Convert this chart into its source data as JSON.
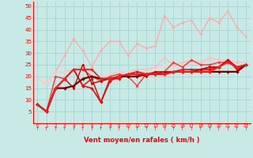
{
  "xlabel": "Vent moyen/en rafales ( km/h )",
  "xlim": [
    -0.5,
    23.5
  ],
  "ylim": [
    0,
    52
  ],
  "yticks": [
    5,
    10,
    15,
    20,
    25,
    30,
    35,
    40,
    45,
    50
  ],
  "xticks": [
    0,
    1,
    2,
    3,
    4,
    5,
    6,
    7,
    8,
    9,
    10,
    11,
    12,
    13,
    14,
    15,
    16,
    17,
    18,
    19,
    20,
    21,
    22,
    23
  ],
  "bg_color": "#c8eae6",
  "grid_color": "#aad4d0",
  "series": [
    {
      "x": [
        0,
        1,
        2,
        3,
        4,
        5,
        6,
        7,
        8,
        9,
        10,
        11,
        12,
        13,
        14,
        15,
        16,
        17,
        18,
        19,
        20,
        21,
        22,
        23
      ],
      "y": [
        19,
        17,
        22,
        29,
        36,
        31,
        24,
        31,
        35,
        35,
        29,
        34,
        32,
        33,
        46,
        41,
        43,
        44,
        38,
        45,
        43,
        48,
        41,
        37
      ],
      "color": "#ffaaaa",
      "lw": 1.0,
      "marker": "o",
      "ms": 2.2
    },
    {
      "x": [
        0,
        1,
        2,
        3,
        4,
        5,
        6,
        7,
        8,
        9,
        10,
        11,
        12,
        13,
        14,
        15,
        16,
        17,
        18,
        19,
        20,
        21,
        22,
        23
      ],
      "y": [
        19,
        17,
        22,
        22,
        23,
        25,
        21,
        20,
        21,
        22,
        22,
        23,
        23,
        24,
        28,
        25,
        26,
        27,
        26,
        28,
        27,
        27,
        26,
        26
      ],
      "color": "#ffbbbb",
      "lw": 1.0,
      "marker": "o",
      "ms": 2.2
    },
    {
      "x": [
        0,
        1,
        2,
        3,
        4,
        5,
        6,
        7,
        8,
        9,
        10,
        11,
        12,
        13,
        14,
        15,
        16,
        17,
        18,
        19,
        20,
        21,
        22,
        23
      ],
      "y": [
        19,
        17,
        22,
        22,
        22,
        24,
        21,
        20,
        21,
        22,
        22,
        22,
        22,
        23,
        25,
        24,
        25,
        26,
        25,
        27,
        26,
        26,
        25,
        25
      ],
      "color": "#ffcccc",
      "lw": 1.2,
      "marker": "o",
      "ms": 2.0
    },
    {
      "x": [
        0,
        1,
        2,
        3,
        4,
        5,
        6,
        7,
        8,
        9,
        10,
        11,
        12,
        13,
        14,
        15,
        16,
        17,
        18,
        19,
        20,
        21,
        22,
        23
      ],
      "y": [
        8,
        5,
        15,
        19,
        23,
        16,
        19,
        9,
        19,
        19,
        21,
        21,
        21,
        21,
        22,
        22,
        23,
        23,
        23,
        24,
        24,
        27,
        24,
        25
      ],
      "color": "#cc2222",
      "lw": 1.2,
      "marker": "D",
      "ms": 2.2
    },
    {
      "x": [
        0,
        1,
        2,
        3,
        4,
        5,
        6,
        7,
        8,
        9,
        10,
        11,
        12,
        13,
        14,
        15,
        16,
        17,
        18,
        19,
        20,
        21,
        22,
        23
      ],
      "y": [
        8,
        5,
        15,
        19,
        23,
        16,
        15,
        9,
        18,
        20,
        21,
        22,
        21,
        21,
        22,
        22,
        22,
        22,
        23,
        23,
        24,
        27,
        23,
        25
      ],
      "color": "#dd1111",
      "lw": 1.2,
      "marker": "D",
      "ms": 2.2
    },
    {
      "x": [
        0,
        1,
        2,
        3,
        4,
        5,
        6,
        7,
        8,
        9,
        10,
        11,
        12,
        13,
        14,
        15,
        16,
        17,
        18,
        19,
        20,
        21,
        22,
        23
      ],
      "y": [
        8,
        5,
        20,
        19,
        23,
        23,
        20,
        18,
        20,
        21,
        20,
        16,
        21,
        22,
        22,
        26,
        24,
        27,
        25,
        25,
        26,
        26,
        24,
        25
      ],
      "color": "#ff3333",
      "lw": 1.0,
      "marker": "D",
      "ms": 2.0
    },
    {
      "x": [
        0,
        1,
        2,
        3,
        4,
        5,
        6,
        7,
        8,
        9,
        10,
        11,
        12,
        13,
        14,
        15,
        16,
        17,
        18,
        19,
        20,
        21,
        22,
        23
      ],
      "y": [
        8,
        5,
        15,
        19,
        15,
        25,
        17,
        18,
        19,
        20,
        21,
        21,
        20,
        22,
        22,
        22,
        22,
        22,
        23,
        24,
        24,
        27,
        24,
        25
      ],
      "color": "#cc0000",
      "lw": 1.0,
      "marker": "D",
      "ms": 1.8
    },
    {
      "x": [
        0,
        1,
        2,
        3,
        4,
        5,
        6,
        7,
        8,
        9,
        10,
        11,
        12,
        13,
        14,
        15,
        16,
        17,
        18,
        19,
        20,
        21,
        22,
        23
      ],
      "y": [
        8,
        5,
        15,
        15,
        16,
        19,
        20,
        19,
        19,
        20,
        20,
        20,
        21,
        21,
        21,
        22,
        22,
        22,
        22,
        22,
        22,
        22,
        22,
        25
      ],
      "color": "#770000",
      "lw": 1.6,
      "marker": "D",
      "ms": 2.2
    },
    {
      "x": [
        0,
        1,
        2,
        3,
        4,
        5,
        6,
        7,
        8,
        9,
        10,
        11,
        12,
        13,
        14,
        15,
        16,
        17,
        18,
        19,
        20,
        21,
        22,
        23
      ],
      "y": [
        8,
        5,
        15,
        19,
        23,
        23,
        23,
        19,
        19,
        20,
        21,
        21,
        21,
        21,
        21,
        22,
        22,
        22,
        22,
        22,
        24,
        26,
        24,
        25
      ],
      "color": "#ee2222",
      "lw": 1.3,
      "marker": "D",
      "ms": 2.2
    }
  ]
}
